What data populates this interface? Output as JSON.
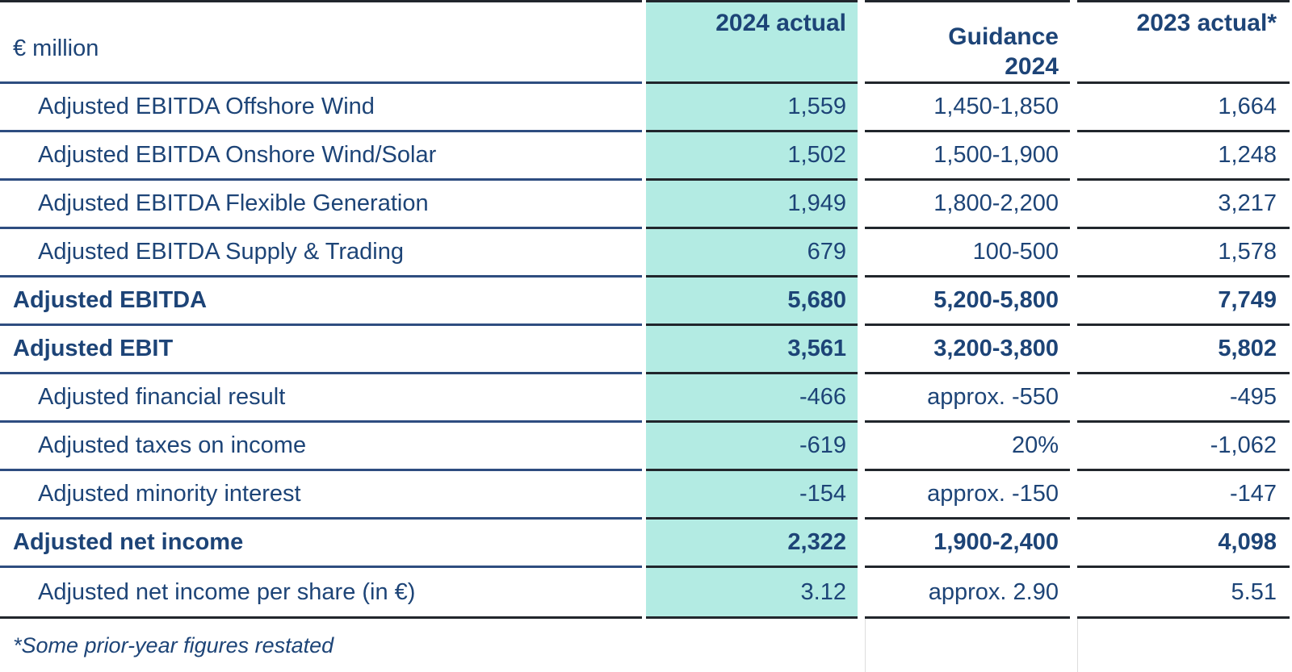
{
  "table": {
    "unit_label": "€ million",
    "header": {
      "col_2024_actual": "2024 actual",
      "col_guidance_line1": "Guidance",
      "col_guidance_line2": "2024",
      "col_2023_actual": "2023 actual*"
    },
    "rows": [
      {
        "label": "Adjusted EBITDA Offshore Wind",
        "actual_2024": "1,559",
        "guidance_2024": "1,450-1,850",
        "actual_2023": "1,664"
      },
      {
        "label": "Adjusted EBITDA Onshore Wind/Solar",
        "actual_2024": "1,502",
        "guidance_2024": "1,500-1,900",
        "actual_2023": "1,248"
      },
      {
        "label": "Adjusted EBITDA Flexible Generation",
        "actual_2024": "1,949",
        "guidance_2024": "1,800-2,200",
        "actual_2023": "3,217"
      },
      {
        "label": "Adjusted EBITDA Supply & Trading",
        "actual_2024": "679",
        "guidance_2024": "100-500",
        "actual_2023": "1,578"
      },
      {
        "label": "Adjusted EBITDA",
        "actual_2024": "5,680",
        "guidance_2024": "5,200-5,800",
        "actual_2023": "7,749",
        "emphasis": true
      },
      {
        "label": "Adjusted EBIT",
        "actual_2024": "3,561",
        "guidance_2024": "3,200-3,800",
        "actual_2023": "5,802",
        "emphasis": true
      },
      {
        "label": "Adjusted financial result",
        "actual_2024": "-466",
        "guidance_2024": "approx. -550",
        "actual_2023": "-495"
      },
      {
        "label": "Adjusted taxes on income",
        "actual_2024": "-619",
        "guidance_2024": "20%",
        "actual_2023": "-1,062"
      },
      {
        "label": "Adjusted minority interest",
        "actual_2024": "-154",
        "guidance_2024": "approx. -150",
        "actual_2023": "-147"
      },
      {
        "label": "Adjusted net income",
        "actual_2024": "2,322",
        "guidance_2024": "1,900-2,400",
        "actual_2023": "4,098",
        "emphasis": true
      },
      {
        "label": "Adjusted net income per share (in €)",
        "actual_2024": "3.12",
        "guidance_2024": "approx. 2.90",
        "actual_2023": "5.51"
      }
    ],
    "footnote": "*Some prior-year figures restated"
  },
  "colors": {
    "navy": "#1d4477",
    "navy_line": "#2e4d80",
    "dark_line": "#21262c",
    "teal": "#b3ebe3",
    "faint": "#dddddd"
  }
}
